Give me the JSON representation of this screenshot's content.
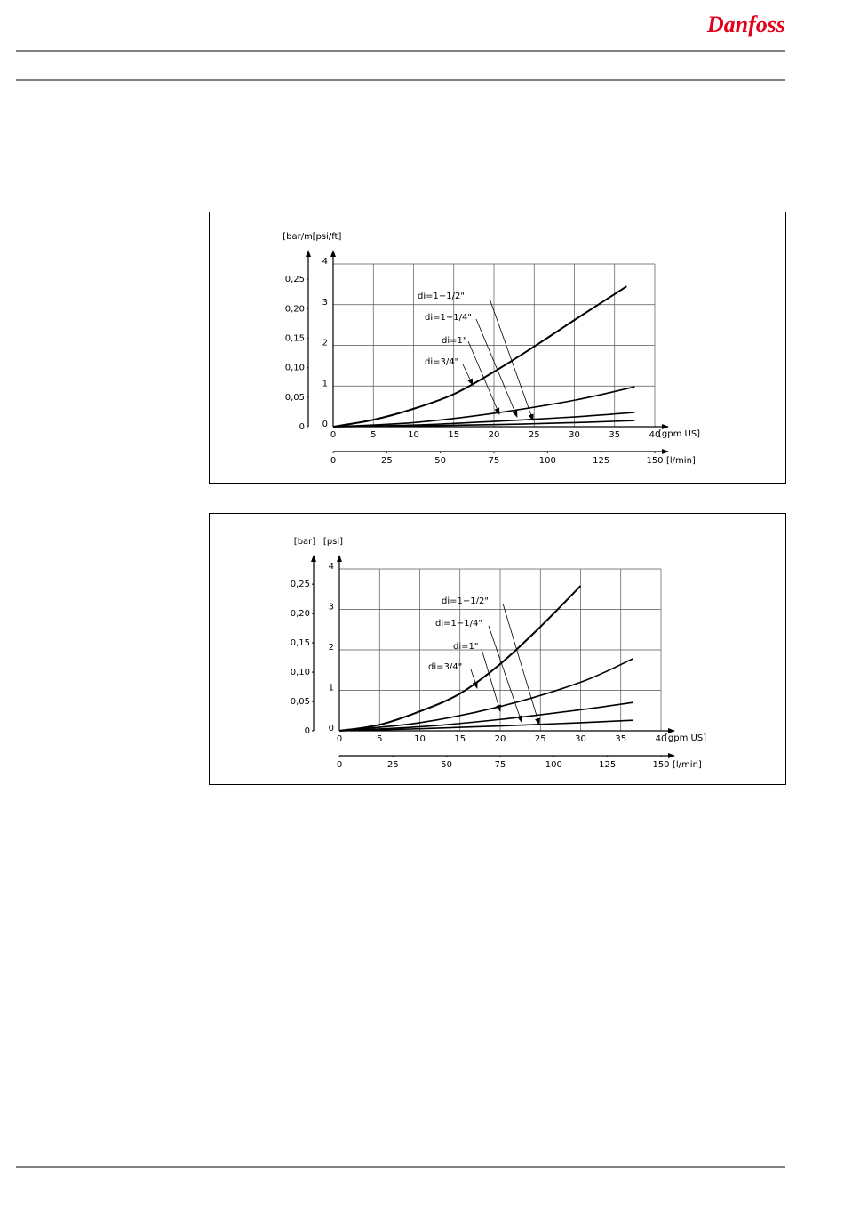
{
  "header": {
    "logo": "Danfoss"
  },
  "chart_data": [
    {
      "type": "line",
      "grid": true,
      "y_label": "[psi/ft]",
      "y2_label": "[bar/m]",
      "x_label": "[gpm  US]",
      "x2_label": "[l/min]",
      "xlim": [
        0,
        40
      ],
      "xticks": [
        0,
        5,
        10,
        15,
        20,
        25,
        30,
        35,
        40
      ],
      "x2lim": [
        0,
        150
      ],
      "x2ticks": [
        0,
        25,
        50,
        75,
        100,
        125,
        150
      ],
      "ylim": [
        0,
        4
      ],
      "yticks": [
        0,
        1,
        2,
        3,
        4
      ],
      "y2lim": [
        0,
        0.276
      ],
      "y2ticks": [
        0,
        {
          "value": 0.05,
          "label": "0,05"
        },
        {
          "value": 0.1,
          "label": "0,10"
        },
        {
          "value": 0.15,
          "label": "0,15"
        },
        {
          "value": 0.2,
          "label": "0,20"
        },
        {
          "value": 0.25,
          "label": "0,25"
        }
      ],
      "series": [
        {
          "name": "di=1−1/2\"",
          "color": "#000000",
          "x": [
            0,
            10,
            20,
            30,
            37.5
          ],
          "values": [
            0,
            0.02,
            0.05,
            0.1,
            0.15
          ]
        },
        {
          "name": "di=1−1/4\"",
          "color": "#000000",
          "x": [
            0,
            10,
            20,
            30,
            37.5
          ],
          "values": [
            0,
            0.04,
            0.13,
            0.24,
            0.35
          ]
        },
        {
          "name": "di=1\"",
          "color": "#000000",
          "x": [
            0,
            10,
            20,
            30,
            37.5
          ],
          "values": [
            0,
            0.1,
            0.33,
            0.65,
            0.98
          ]
        },
        {
          "name": "di=3/4\"",
          "color": "#000000",
          "x": [
            0,
            5,
            10,
            15,
            20,
            25,
            30,
            36.5
          ],
          "values": [
            0,
            0.17,
            0.44,
            0.8,
            1.35,
            1.97,
            2.62,
            3.45
          ]
        }
      ]
    },
    {
      "type": "line",
      "grid": true,
      "y_label": "[psi]",
      "y2_label": "[bar]",
      "x_label": "[gpm  US]",
      "x2_label": "[l/min]",
      "xlim": [
        0,
        40
      ],
      "xticks": [
        0,
        5,
        10,
        15,
        20,
        25,
        30,
        35,
        40
      ],
      "x2lim": [
        0,
        150
      ],
      "x2ticks": [
        0,
        25,
        50,
        75,
        100,
        125,
        150
      ],
      "ylim": [
        0,
        4
      ],
      "yticks": [
        0,
        1,
        2,
        3,
        4
      ],
      "y2lim": [
        0,
        0.276
      ],
      "y2ticks": [
        0,
        {
          "value": 0.05,
          "label": "0,05"
        },
        {
          "value": 0.1,
          "label": "0,10"
        },
        {
          "value": 0.15,
          "label": "0,15"
        },
        {
          "value": 0.2,
          "label": "0,20"
        },
        {
          "value": 0.25,
          "label": "0,25"
        }
      ],
      "series": [
        {
          "name": "di=1−1/2\"",
          "color": "#000000",
          "x": [
            0,
            10,
            20,
            30,
            36.5
          ],
          "values": [
            0,
            0.05,
            0.12,
            0.2,
            0.26
          ]
        },
        {
          "name": "di=1−1/4\"",
          "color": "#000000",
          "x": [
            0,
            10,
            20,
            30,
            36.5
          ],
          "values": [
            0,
            0.1,
            0.28,
            0.52,
            0.7
          ]
        },
        {
          "name": "di=1\"",
          "color": "#000000",
          "x": [
            0,
            10,
            20,
            30,
            36.5
          ],
          "values": [
            0,
            0.2,
            0.6,
            1.2,
            1.78
          ]
        },
        {
          "name": "di=3/4\"",
          "color": "#000000",
          "x": [
            0,
            5,
            10,
            15,
            20,
            25,
            30
          ],
          "values": [
            0,
            0.15,
            0.48,
            0.92,
            1.65,
            2.57,
            3.58
          ]
        }
      ]
    }
  ]
}
